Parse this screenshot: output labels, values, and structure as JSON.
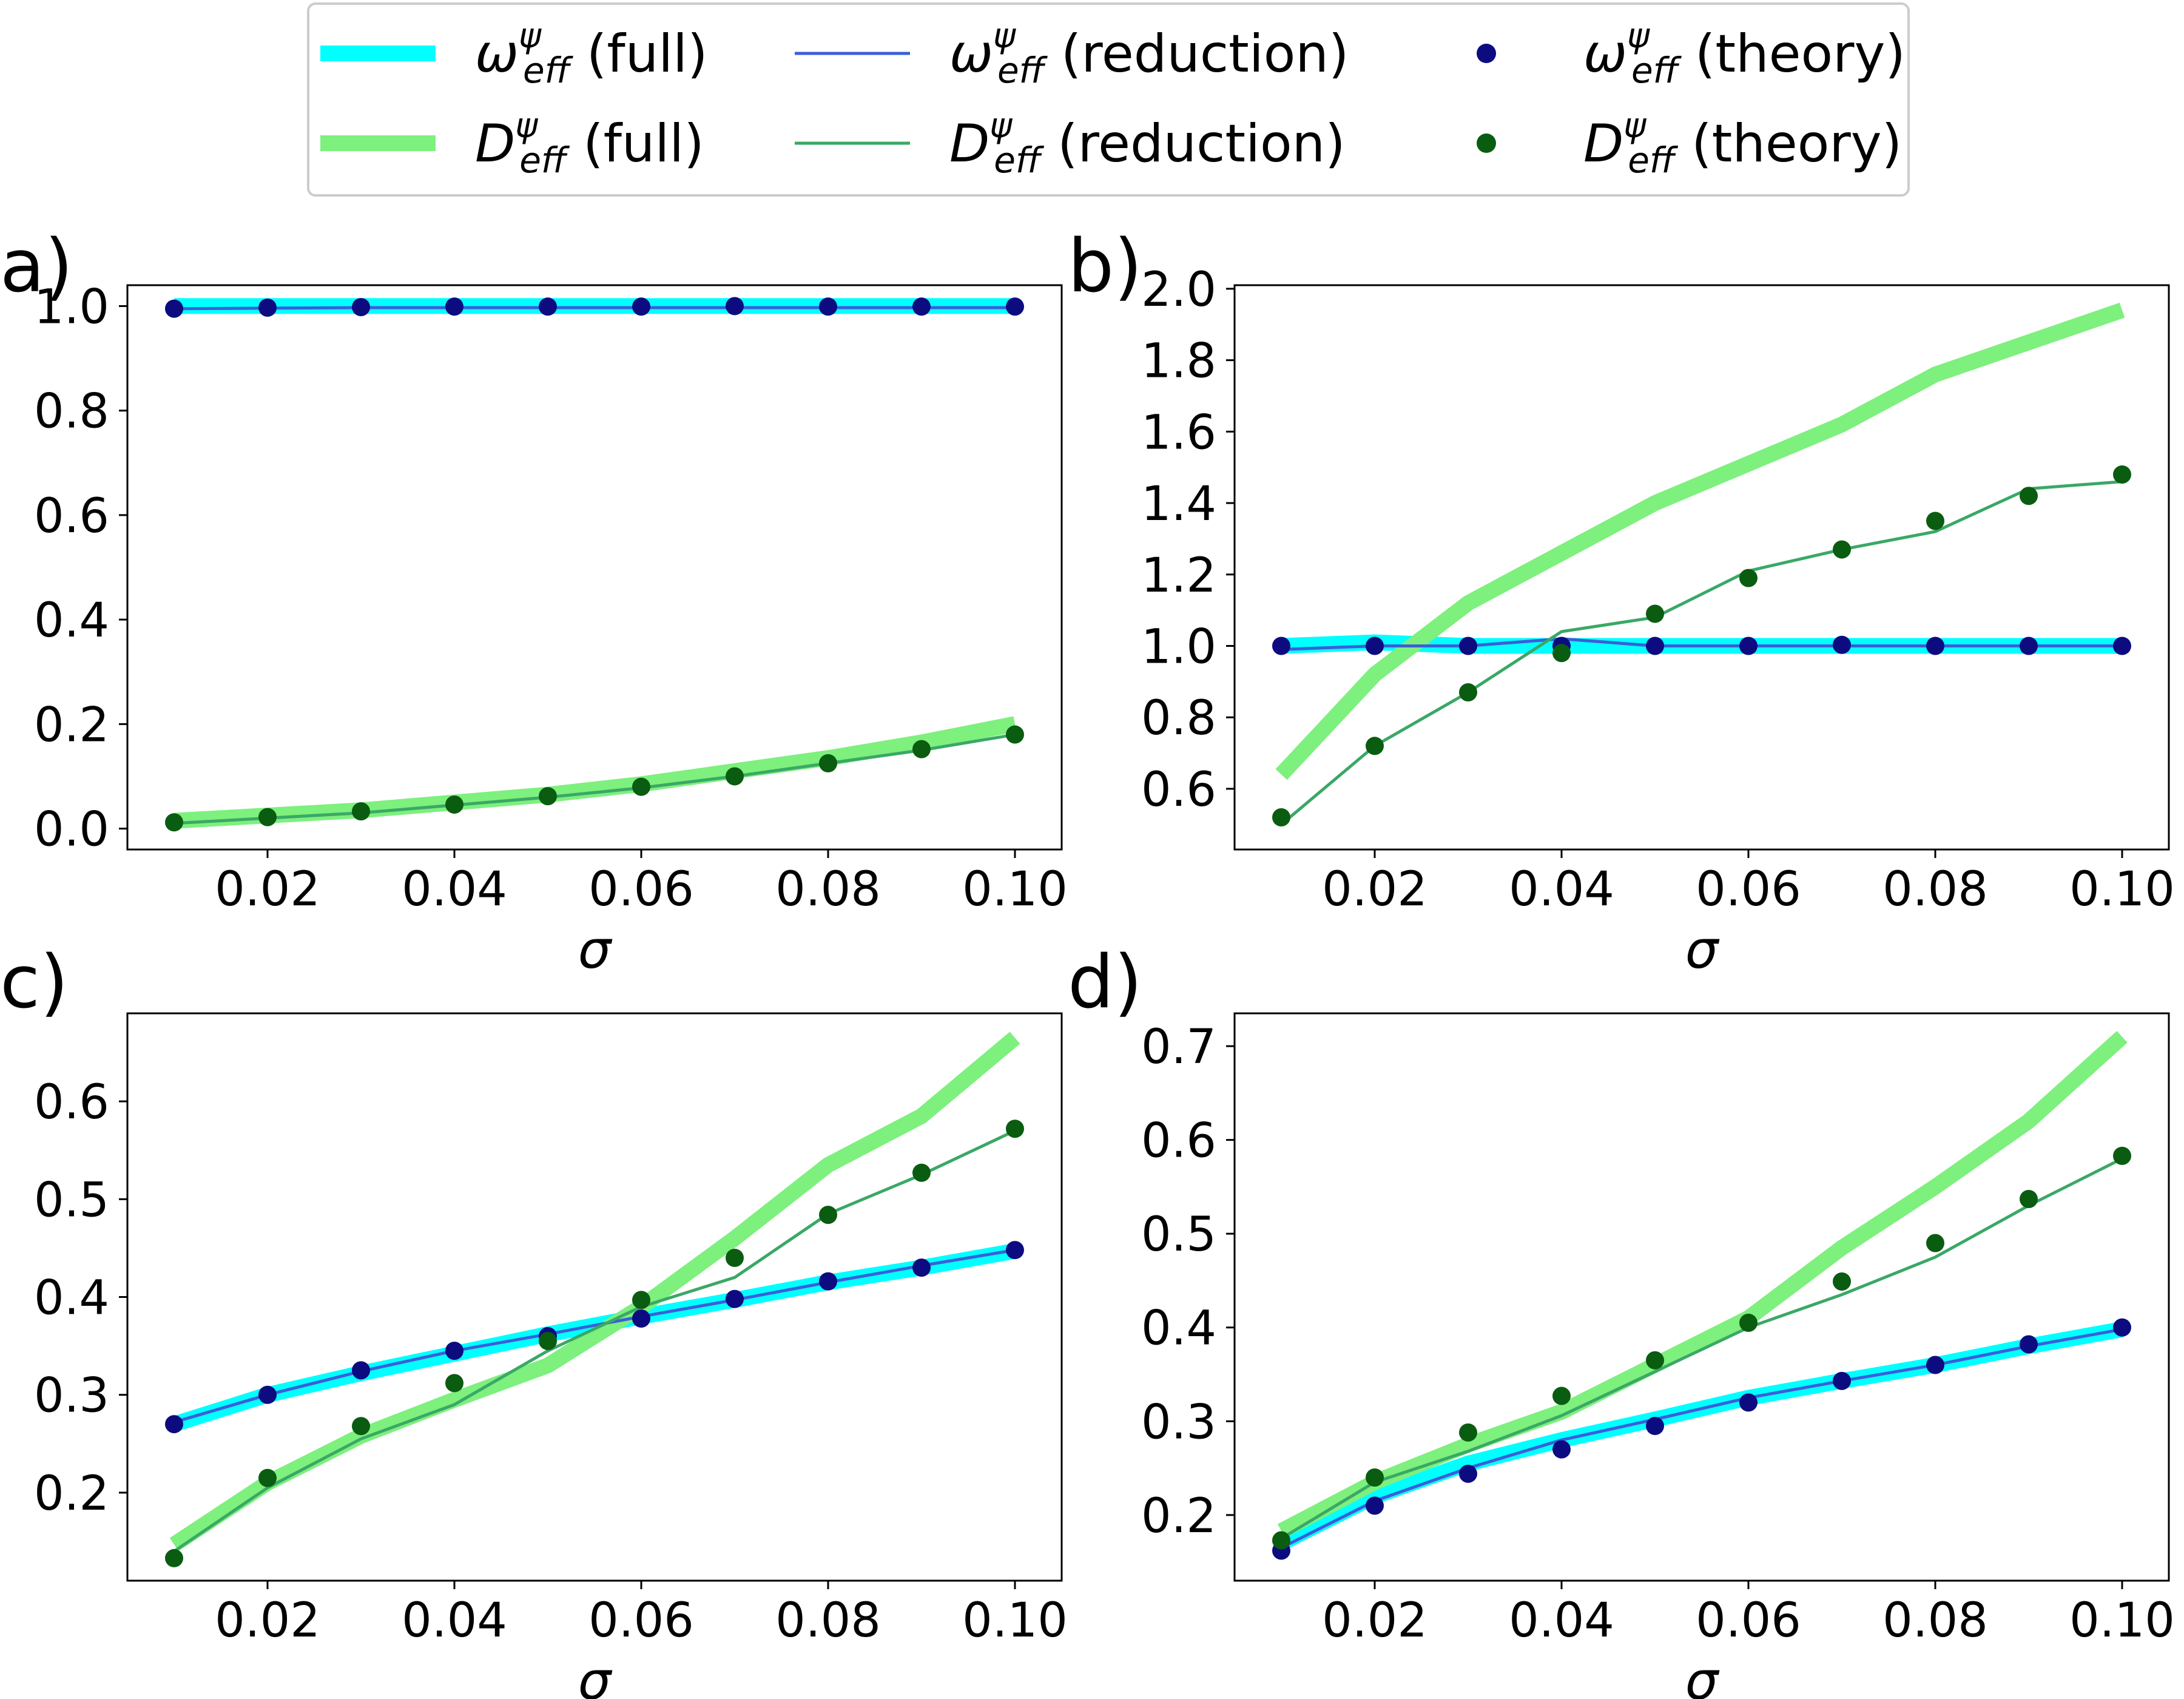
{
  "colors": {
    "omega_full": "#00ffff",
    "D_full": "#7df07d",
    "omega_reduction": "#3a5fd9",
    "D_reduction": "#3aa866",
    "omega_theory": "#0c0c80",
    "D_theory": "#0a5c10"
  },
  "legend": {
    "items": [
      {
        "id": "omega-full",
        "symbol": "ω",
        "sub": "eff",
        "sup": "ψ",
        "suffix": " (full)",
        "style": "thick",
        "color_key": "omega_full"
      },
      {
        "id": "D-full",
        "symbol": "D",
        "sub": "eff",
        "sup": "ψ",
        "suffix": " (full)",
        "style": "thick",
        "color_key": "D_full"
      },
      {
        "id": "omega-reduction",
        "symbol": "ω",
        "sub": "eff",
        "sup": "ψ",
        "suffix": " (reduction)",
        "style": "thin",
        "color_key": "omega_reduction"
      },
      {
        "id": "D-reduction",
        "symbol": "D",
        "sub": "eff",
        "sup": "ψ",
        "suffix": " (reduction)",
        "style": "thin",
        "color_key": "D_reduction"
      },
      {
        "id": "omega-theory",
        "symbol": "ω",
        "sub": "eff",
        "sup": "ψ",
        "suffix": " (theory)",
        "style": "dot",
        "color_key": "omega_theory"
      },
      {
        "id": "D-theory",
        "symbol": "D",
        "sub": "eff",
        "sup": "ψ",
        "suffix": " (theory)",
        "style": "dot",
        "color_key": "D_theory"
      }
    ]
  },
  "chart_data": [
    {
      "panel": "a)",
      "type": "line",
      "xlabel": "σ",
      "ylabel": "",
      "xlim": [
        0.005,
        0.105
      ],
      "ylim": [
        -0.04,
        1.04
      ],
      "xticks": [
        0.02,
        0.04,
        0.06,
        0.08,
        0.1
      ],
      "xtick_labels": [
        "0.02",
        "0.04",
        "0.06",
        "0.08",
        "0.10"
      ],
      "yticks": [
        0.0,
        0.2,
        0.4,
        0.6,
        0.8,
        1.0
      ],
      "ytick_labels": [
        "0.0",
        "0.2",
        "0.4",
        "0.6",
        "0.8",
        "1.0"
      ],
      "x": [
        0.01,
        0.02,
        0.03,
        0.04,
        0.05,
        0.06,
        0.07,
        0.08,
        0.09,
        0.1
      ],
      "series": [
        {
          "name": "omega_full",
          "style": "thick",
          "values": [
            1.0,
            1.0,
            1.0,
            1.0,
            1.0,
            1.0,
            1.0,
            1.0,
            1.0,
            1.0
          ]
        },
        {
          "name": "D_full",
          "style": "thick",
          "values": [
            0.015,
            0.025,
            0.035,
            0.05,
            0.065,
            0.085,
            0.11,
            0.135,
            0.165,
            0.2
          ]
        },
        {
          "name": "omega_reduction",
          "style": "thin",
          "values": [
            0.995,
            0.996,
            0.997,
            0.997,
            0.997,
            0.997,
            0.997,
            0.997,
            0.997,
            0.997
          ]
        },
        {
          "name": "D_reduction",
          "style": "thin",
          "values": [
            0.01,
            0.02,
            0.03,
            0.045,
            0.06,
            0.078,
            0.1,
            0.125,
            0.15,
            0.18
          ]
        },
        {
          "name": "omega_theory",
          "style": "dot",
          "values": [
            0.995,
            0.997,
            0.998,
            0.999,
            0.999,
            0.999,
            1.0,
            0.999,
            0.999,
            0.999
          ]
        },
        {
          "name": "D_theory",
          "style": "dot",
          "values": [
            0.012,
            0.022,
            0.033,
            0.046,
            0.062,
            0.08,
            0.1,
            0.125,
            0.152,
            0.18
          ]
        }
      ]
    },
    {
      "panel": "b)",
      "type": "line",
      "xlabel": "σ",
      "ylabel": "",
      "xlim": [
        0.005,
        0.105
      ],
      "ylim": [
        0.43,
        2.01
      ],
      "xticks": [
        0.02,
        0.04,
        0.06,
        0.08,
        0.1
      ],
      "xtick_labels": [
        "0.02",
        "0.04",
        "0.06",
        "0.08",
        "0.10"
      ],
      "yticks": [
        0.6,
        0.8,
        1.0,
        1.2,
        1.4,
        1.6,
        1.8,
        2.0
      ],
      "ytick_labels": [
        "0.6",
        "0.8",
        "1.0",
        "1.2",
        "1.4",
        "1.6",
        "1.8",
        "2.0"
      ],
      "x": [
        0.01,
        0.02,
        0.03,
        0.04,
        0.05,
        0.06,
        0.07,
        0.08,
        0.09,
        0.1
      ],
      "series": [
        {
          "name": "omega_full",
          "style": "thick",
          "values": [
            1.0,
            1.01,
            1.0,
            1.0,
            1.0,
            1.0,
            1.0,
            1.0,
            1.0,
            1.0
          ]
        },
        {
          "name": "D_full",
          "style": "thick",
          "values": [
            0.64,
            0.92,
            1.12,
            1.26,
            1.4,
            1.51,
            1.62,
            1.76,
            1.85,
            1.94
          ]
        },
        {
          "name": "omega_reduction",
          "style": "thin",
          "values": [
            0.99,
            1.0,
            1.0,
            1.02,
            1.0,
            1.0,
            1.0,
            1.0,
            1.0,
            1.0
          ]
        },
        {
          "name": "D_reduction",
          "style": "thin",
          "values": [
            0.5,
            0.72,
            0.87,
            1.04,
            1.08,
            1.21,
            1.27,
            1.32,
            1.44,
            1.46
          ]
        },
        {
          "name": "omega_theory",
          "style": "dot",
          "values": [
            1.0,
            1.0,
            1.0,
            1.0,
            1.0,
            1.0,
            1.003,
            1.0,
            1.0,
            1.0
          ]
        },
        {
          "name": "D_theory",
          "style": "dot",
          "values": [
            0.52,
            0.72,
            0.87,
            0.98,
            1.09,
            1.19,
            1.27,
            1.35,
            1.42,
            1.48
          ]
        }
      ]
    },
    {
      "panel": "c)",
      "type": "line",
      "xlabel": "σ",
      "ylabel": "",
      "xlim": [
        0.005,
        0.105
      ],
      "ylim": [
        0.11,
        0.69
      ],
      "xticks": [
        0.02,
        0.04,
        0.06,
        0.08,
        0.1
      ],
      "xtick_labels": [
        "0.02",
        "0.04",
        "0.06",
        "0.08",
        "0.10"
      ],
      "yticks": [
        0.2,
        0.3,
        0.4,
        0.5,
        0.6
      ],
      "ytick_labels": [
        "0.2",
        "0.3",
        "0.4",
        "0.5",
        "0.6"
      ],
      "x": [
        0.01,
        0.02,
        0.03,
        0.04,
        0.05,
        0.06,
        0.07,
        0.08,
        0.09,
        0.1
      ],
      "series": [
        {
          "name": "omega_full",
          "style": "thick",
          "values": [
            0.27,
            0.3,
            0.322,
            0.342,
            0.362,
            0.38,
            0.397,
            0.415,
            0.43,
            0.447
          ]
        },
        {
          "name": "D_full",
          "style": "thick",
          "values": [
            0.147,
            0.21,
            0.258,
            0.295,
            0.33,
            0.39,
            0.46,
            0.535,
            0.585,
            0.665
          ]
        },
        {
          "name": "omega_reduction",
          "style": "thin",
          "values": [
            0.272,
            0.3,
            0.324,
            0.345,
            0.362,
            0.38,
            0.397,
            0.415,
            0.432,
            0.448
          ]
        },
        {
          "name": "D_reduction",
          "style": "thin",
          "values": [
            0.14,
            0.205,
            0.255,
            0.29,
            0.345,
            0.39,
            0.42,
            0.485,
            0.525,
            0.57
          ]
        },
        {
          "name": "omega_theory",
          "style": "dot",
          "values": [
            0.27,
            0.3,
            0.325,
            0.345,
            0.36,
            0.378,
            0.398,
            0.416,
            0.43,
            0.448
          ]
        },
        {
          "name": "D_theory",
          "style": "dot",
          "values": [
            0.133,
            0.215,
            0.268,
            0.312,
            0.355,
            0.397,
            0.44,
            0.484,
            0.527,
            0.572
          ]
        }
      ]
    },
    {
      "panel": "d)",
      "type": "line",
      "xlabel": "σ",
      "ylabel": "",
      "xlim": [
        0.005,
        0.105
      ],
      "ylim": [
        0.13,
        0.735
      ],
      "xticks": [
        0.02,
        0.04,
        0.06,
        0.08,
        0.1
      ],
      "xtick_labels": [
        "0.02",
        "0.04",
        "0.06",
        "0.08",
        "0.10"
      ],
      "yticks": [
        0.2,
        0.3,
        0.4,
        0.5,
        0.6,
        0.7
      ],
      "ytick_labels": [
        "0.2",
        "0.3",
        "0.4",
        "0.5",
        "0.6",
        "0.7"
      ],
      "x": [
        0.01,
        0.02,
        0.03,
        0.04,
        0.05,
        0.06,
        0.07,
        0.08,
        0.09,
        0.1
      ],
      "series": [
        {
          "name": "omega_full",
          "style": "thick",
          "values": [
            0.17,
            0.22,
            0.255,
            0.28,
            0.302,
            0.325,
            0.343,
            0.36,
            0.38,
            0.398
          ]
        },
        {
          "name": "D_full",
          "style": "thick",
          "values": [
            0.183,
            0.235,
            0.275,
            0.31,
            0.36,
            0.41,
            0.485,
            0.55,
            0.62,
            0.71
          ]
        },
        {
          "name": "omega_reduction",
          "style": "thin",
          "values": [
            0.165,
            0.215,
            0.25,
            0.28,
            0.302,
            0.325,
            0.343,
            0.36,
            0.38,
            0.398
          ]
        },
        {
          "name": "D_reduction",
          "style": "thin",
          "values": [
            0.175,
            0.235,
            0.268,
            0.306,
            0.353,
            0.4,
            0.435,
            0.475,
            0.53,
            0.58
          ]
        },
        {
          "name": "omega_theory",
          "style": "dot",
          "values": [
            0.162,
            0.21,
            0.244,
            0.27,
            0.295,
            0.32,
            0.343,
            0.36,
            0.382,
            0.4
          ]
        },
        {
          "name": "D_theory",
          "style": "dot",
          "values": [
            0.173,
            0.24,
            0.288,
            0.327,
            0.365,
            0.405,
            0.449,
            0.49,
            0.537,
            0.583
          ]
        }
      ]
    }
  ]
}
